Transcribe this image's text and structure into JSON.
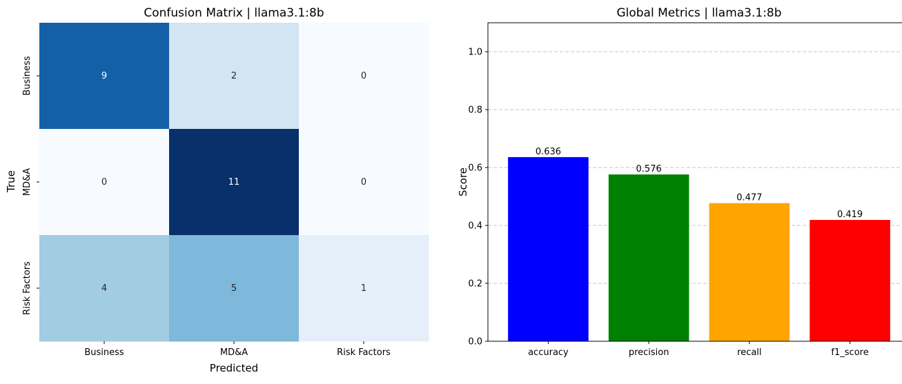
{
  "chart_data": [
    {
      "type": "heatmap",
      "title": "Confusion Matrix | llama3.1:8b",
      "xlabel": "Predicted",
      "ylabel": "True",
      "x_categories": [
        "Business",
        "MD&A",
        "Risk Factors"
      ],
      "y_categories": [
        "Business",
        "MD&A",
        "Risk Factors"
      ],
      "values": [
        [
          9,
          2,
          0
        ],
        [
          0,
          11,
          0
        ],
        [
          4,
          5,
          1
        ]
      ],
      "value_range": [
        0,
        11
      ],
      "colormap": "Blues",
      "colorbar": false
    },
    {
      "type": "bar",
      "title": "Global Metrics | llama3.1:8b",
      "xlabel": "",
      "ylabel": "Score",
      "categories": [
        "accuracy",
        "precision",
        "recall",
        "f1_score"
      ],
      "values": [
        0.636,
        0.576,
        0.477,
        0.419
      ],
      "value_labels": [
        "0.636",
        "0.576",
        "0.477",
        "0.419"
      ],
      "colors": [
        "#0000ff",
        "#008000",
        "#ffa500",
        "#ff0000"
      ],
      "ylim": [
        0,
        1.1
      ],
      "yticks": [
        "0.0",
        "0.2",
        "0.4",
        "0.6",
        "0.8",
        "1.0"
      ],
      "grid": "y-dashed",
      "legend": "none"
    }
  ]
}
